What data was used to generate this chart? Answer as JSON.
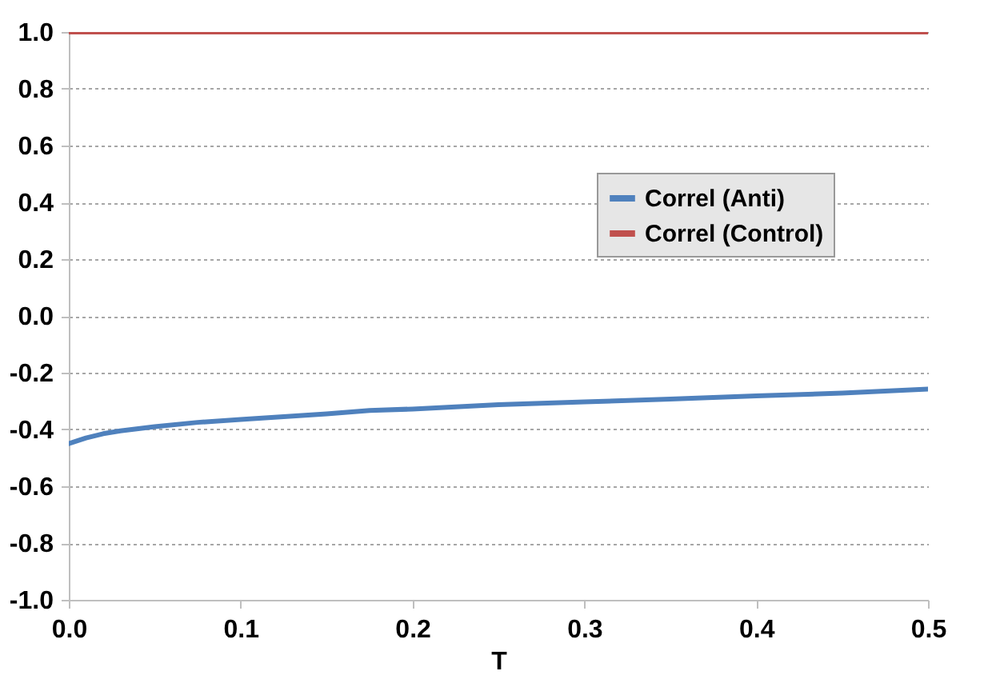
{
  "chart_data": {
    "type": "line",
    "xlabel": "T",
    "xlim": [
      0,
      0.5
    ],
    "xticks": [
      {
        "value": 0,
        "label": "0.0"
      },
      0.1,
      0.2,
      0.3,
      0.4,
      {
        "value": 0.5,
        "label": "0.5"
      }
    ],
    "ylim": [
      -1,
      1
    ],
    "yticks": [
      {
        "value": -1,
        "label": "-1.0"
      },
      -0.8,
      -0.6,
      -0.4,
      -0.2,
      {
        "value": 0,
        "label": "0.0"
      },
      0.2,
      0.4,
      0.6,
      0.8,
      {
        "value": 1,
        "label": "1.0"
      }
    ],
    "grid": "y",
    "legend": "top right",
    "line_style": "solid",
    "marker": "none",
    "series": [
      {
        "name": "Correl (Anti)",
        "color": "#4f81bd",
        "x": [
          0,
          0.005,
          0.01,
          0.02,
          0.03,
          0.05,
          0.075,
          0.1,
          0.15,
          0.175,
          0.2,
          0.25,
          0.3,
          0.35,
          0.4,
          0.45,
          0.5
        ],
        "values": [
          -0.45,
          -0.44,
          -0.43,
          -0.415,
          -0.405,
          -0.39,
          -0.375,
          -0.365,
          -0.345,
          -0.333,
          -0.328,
          -0.313,
          -0.303,
          -0.293,
          -0.282,
          -0.272,
          -0.258
        ]
      },
      {
        "name": "Correl (Control)",
        "color": "#c0504d",
        "x": [
          0,
          0.5
        ],
        "values": [
          1,
          1
        ]
      }
    ]
  }
}
